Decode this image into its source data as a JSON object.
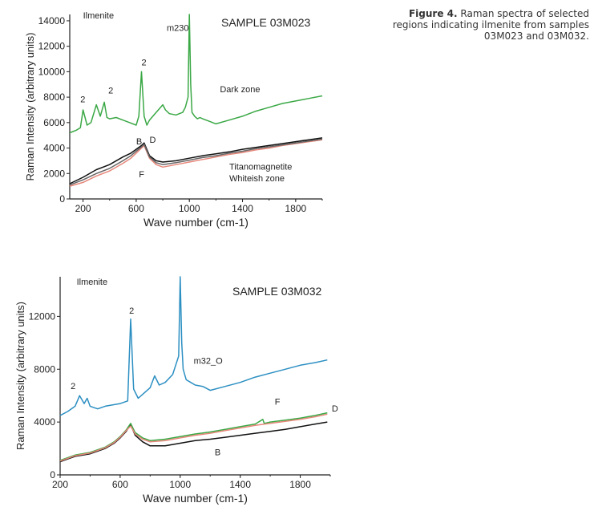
{
  "caption": {
    "label": "Figure 4.",
    "text": "Raman spectra of selected regions indicating ilmenite from samples 03M023 and 03M032."
  },
  "chart_data": [
    {
      "type": "line",
      "title": "SAMPLE 03M023",
      "xlabel": "Wave number (cm-1)",
      "ylabel": "Raman Intensity (arbitrary units)",
      "xlim": [
        100,
        2000
      ],
      "ylim": [
        0,
        14500
      ],
      "xticks": [
        "200",
        "600",
        "1000",
        "1400",
        "1800"
      ],
      "yticks": [
        "0",
        "2000",
        "4000",
        "6000",
        "8000",
        "10000",
        "12000",
        "14000"
      ],
      "series": [
        {
          "name": "m230",
          "color": "#3aa845",
          "x": [
            100,
            150,
            180,
            200,
            230,
            260,
            300,
            330,
            360,
            380,
            400,
            450,
            500,
            550,
            600,
            620,
            640,
            660,
            680,
            700,
            750,
            800,
            820,
            850,
            900,
            950,
            970,
            990,
            1000,
            1010,
            1020,
            1040,
            1060,
            1080,
            1100,
            1150,
            1200,
            1300,
            1400,
            1500,
            1600,
            1700,
            1800,
            1900,
            2000
          ],
          "y": [
            5200,
            5400,
            5600,
            7000,
            5800,
            6000,
            7400,
            6500,
            7600,
            6400,
            6300,
            6400,
            6200,
            6000,
            5800,
            6500,
            10000,
            6500,
            5800,
            6200,
            6800,
            7400,
            7000,
            6700,
            6600,
            6800,
            7200,
            8000,
            14500,
            9000,
            6800,
            6500,
            6300,
            6400,
            6300,
            6100,
            5900,
            6200,
            6500,
            6900,
            7200,
            7500,
            7700,
            7900,
            8100
          ]
        },
        {
          "name": "B",
          "color": "#111111",
          "x": [
            100,
            200,
            300,
            400,
            500,
            560,
            600,
            640,
            660,
            700,
            750,
            800,
            900,
            1000,
            1100,
            1200,
            1300,
            1400,
            1500,
            1600,
            1700,
            1800,
            1900,
            2000
          ],
          "y": [
            1200,
            1700,
            2300,
            2700,
            3300,
            3600,
            3900,
            4200,
            4400,
            3400,
            3000,
            2900,
            3000,
            3200,
            3400,
            3550,
            3700,
            3900,
            4050,
            4200,
            4350,
            4500,
            4650,
            4800
          ]
        },
        {
          "name": "F",
          "color": "#e7877a",
          "x": [
            100,
            200,
            300,
            400,
            500,
            560,
            600,
            640,
            660,
            700,
            750,
            800,
            900,
            1000,
            1100,
            1200,
            1300,
            1400,
            1500,
            1600,
            1700,
            1800,
            1900,
            2000
          ],
          "y": [
            1000,
            1300,
            1800,
            2200,
            2800,
            3200,
            3600,
            4000,
            4200,
            3200,
            2700,
            2500,
            2700,
            2900,
            3100,
            3300,
            3500,
            3650,
            3850,
            4000,
            4200,
            4350,
            4500,
            4650
          ]
        },
        {
          "name": "D",
          "color": "#666666",
          "x": [
            100,
            200,
            300,
            400,
            500,
            560,
            600,
            640,
            660,
            700,
            750,
            800,
            900,
            1000,
            1100,
            1200,
            1300,
            1400,
            1500,
            1600,
            1700,
            1800,
            1900,
            2000
          ],
          "y": [
            1100,
            1500,
            2000,
            2400,
            3000,
            3400,
            3750,
            4100,
            4300,
            3300,
            2850,
            2700,
            2850,
            3050,
            3250,
            3400,
            3600,
            3750,
            3950,
            4100,
            4250,
            4400,
            4550,
            4700
          ]
        }
      ],
      "annotations": [
        {
          "text": "Ilmenite",
          "x": 200,
          "y": 14200
        },
        {
          "text": "m230",
          "x": 830,
          "y": 13200
        },
        {
          "text": "2",
          "x": 180,
          "y": 7600
        },
        {
          "text": "2",
          "x": 390,
          "y": 8300
        },
        {
          "text": "2",
          "x": 640,
          "y": 10500
        },
        {
          "text": "Dark zone",
          "x": 1230,
          "y": 8400
        },
        {
          "text": "B",
          "x": 600,
          "y": 4300
        },
        {
          "text": "D",
          "x": 700,
          "y": 4400
        },
        {
          "text": "F",
          "x": 620,
          "y": 1700
        },
        {
          "text": "Titanomagnetite",
          "x": 1300,
          "y": 2300
        },
        {
          "text": "Whiteish zone",
          "x": 1300,
          "y": 1400
        }
      ]
    },
    {
      "type": "line",
      "title": "SAMPLE 03M032",
      "xlabel": "Wave number (cm-1)",
      "ylabel": "Raman Intensity (arbitrary units)",
      "xlim": [
        200,
        2000
      ],
      "ylim": [
        0,
        15000
      ],
      "xticks": [
        "200",
        "600",
        "1000",
        "1400",
        "1800"
      ],
      "yticks": [
        "0",
        "4000",
        "8000",
        "12000"
      ],
      "series": [
        {
          "name": "m32_O",
          "color": "#2c8fc2",
          "x": [
            200,
            250,
            300,
            330,
            360,
            380,
            400,
            450,
            500,
            550,
            600,
            650,
            670,
            690,
            720,
            760,
            800,
            830,
            860,
            900,
            950,
            990,
            1000,
            1010,
            1020,
            1040,
            1070,
            1100,
            1150,
            1200,
            1300,
            1400,
            1500,
            1600,
            1700,
            1800,
            1900,
            1980
          ],
          "y": [
            4500,
            4800,
            5200,
            6000,
            5400,
            5800,
            5200,
            5000,
            5200,
            5300,
            5400,
            5600,
            11800,
            6500,
            5800,
            6200,
            6600,
            7500,
            6800,
            7000,
            7600,
            9000,
            15000,
            10000,
            8000,
            7200,
            7000,
            6800,
            6700,
            6400,
            6700,
            7000,
            7400,
            7700,
            8000,
            8300,
            8500,
            8700
          ]
        },
        {
          "name": "B",
          "color": "#111111",
          "x": [
            200,
            250,
            300,
            400,
            500,
            560,
            600,
            640,
            670,
            700,
            750,
            800,
            900,
            1000,
            1100,
            1200,
            1300,
            1400,
            1500,
            1600,
            1700,
            1800,
            1900,
            1980
          ],
          "y": [
            1000,
            1200,
            1400,
            1600,
            2000,
            2400,
            2800,
            3300,
            3800,
            3000,
            2500,
            2200,
            2200,
            2400,
            2600,
            2700,
            2850,
            3000,
            3150,
            3300,
            3450,
            3650,
            3850,
            4000
          ]
        },
        {
          "name": "F",
          "color": "#3aa845",
          "x": [
            200,
            250,
            300,
            400,
            500,
            560,
            600,
            640,
            670,
            700,
            750,
            800,
            900,
            1000,
            1100,
            1200,
            1300,
            1400,
            1500,
            1550,
            1560,
            1600,
            1700,
            1800,
            1900,
            1980
          ],
          "y": [
            1100,
            1300,
            1500,
            1700,
            2100,
            2500,
            2900,
            3400,
            3900,
            3200,
            2800,
            2600,
            2700,
            2900,
            3100,
            3250,
            3450,
            3650,
            3850,
            4200,
            3900,
            4000,
            4150,
            4300,
            4500,
            4700
          ]
        },
        {
          "name": "D",
          "color": "#e7877a",
          "x": [
            200,
            250,
            300,
            400,
            500,
            560,
            600,
            640,
            670,
            700,
            750,
            800,
            900,
            1000,
            1100,
            1200,
            1300,
            1400,
            1500,
            1600,
            1700,
            1800,
            1900,
            1980
          ],
          "y": [
            1050,
            1250,
            1450,
            1650,
            2050,
            2450,
            2850,
            3350,
            3700,
            3100,
            2700,
            2500,
            2600,
            2800,
            3000,
            3150,
            3350,
            3550,
            3750,
            3900,
            4050,
            4200,
            4400,
            4600
          ]
        }
      ],
      "annotations": [
        {
          "text": "Ilmenite",
          "x": 310,
          "y": 14400
        },
        {
          "text": "2",
          "x": 270,
          "y": 6500
        },
        {
          "text": "2",
          "x": 660,
          "y": 12200
        },
        {
          "text": "m32_O",
          "x": 1090,
          "y": 8400
        },
        {
          "text": "F",
          "x": 1630,
          "y": 5300
        },
        {
          "text": "D",
          "x": 2010,
          "y": 4800
        },
        {
          "text": "B",
          "x": 1230,
          "y": 1500
        }
      ]
    }
  ]
}
